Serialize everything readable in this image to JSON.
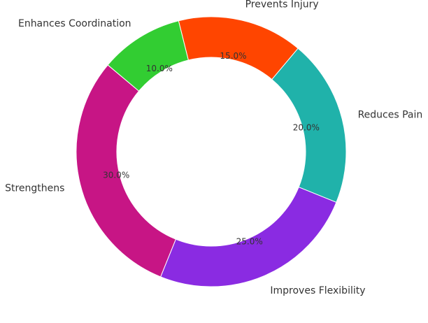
{
  "chart_data": {
    "type": "pie",
    "variant": "donut",
    "categories": [
      "Strengthens",
      "Improves Flexibility",
      "Reduces Pain",
      "Prevents Injury",
      "Enhances Coordination"
    ],
    "values": [
      30,
      25,
      20,
      15,
      10
    ],
    "percent_labels": [
      "30.0%",
      "25.0%",
      "20.0%",
      "15.0%",
      "10.0%"
    ],
    "colors": [
      "#c71585",
      "#8a2be2",
      "#20b2aa",
      "#ff4500",
      "#32cd32"
    ],
    "start_angle_deg": 140,
    "direction": "counterclockwise",
    "legend": "none"
  }
}
